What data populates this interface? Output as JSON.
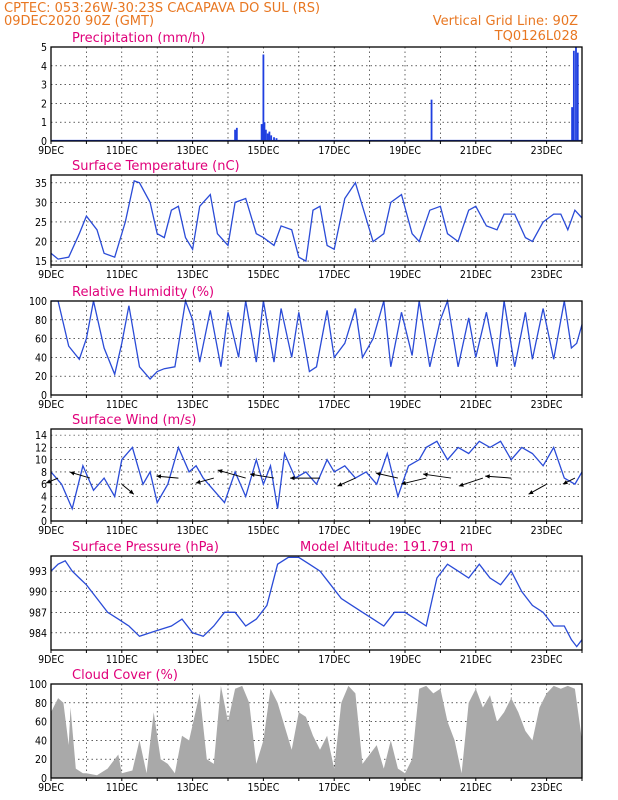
{
  "header": {
    "line1": "CPTEC:   053:26W-30:23S   CACAPAVA DO SUL (RS)",
    "line2": "09DEC2020  90Z (GMT)",
    "grid_note": "Vertical Grid Line: 90Z",
    "code": "TQ0126L028"
  },
  "date_labels": [
    "9DEC",
    "11DEC",
    "13DEC",
    "15DEC",
    "17DEC",
    "19DEC",
    "21DEC",
    "23DEC"
  ],
  "chart_data": [
    {
      "id": "precip",
      "type": "bar",
      "title": "Precipitation  (mm/h)",
      "ylim": [
        0,
        5
      ],
      "yticks": [
        "0",
        "1",
        "2",
        "3",
        "4",
        "5"
      ],
      "xlim": [
        0,
        15
      ],
      "values": [
        [
          5.2,
          0.6
        ],
        [
          5.25,
          0.7
        ],
        [
          5.95,
          0.9
        ],
        [
          6.0,
          4.6
        ],
        [
          6.03,
          1.0
        ],
        [
          6.07,
          0.6
        ],
        [
          6.12,
          0.4
        ],
        [
          6.17,
          0.5
        ],
        [
          6.22,
          0.3
        ],
        [
          6.3,
          0.2
        ],
        [
          6.37,
          0.15
        ],
        [
          10.75,
          2.2
        ],
        [
          14.72,
          1.8
        ],
        [
          14.77,
          4.8
        ],
        [
          14.83,
          5.0
        ],
        [
          14.88,
          4.7
        ]
      ]
    },
    {
      "id": "temp",
      "type": "line",
      "title": "Surface Temperature (nC)",
      "ylim": [
        14,
        37
      ],
      "yticks": [
        "15",
        "20",
        "25",
        "30",
        "35"
      ],
      "xlim": [
        0,
        15
      ],
      "x": [
        0,
        0.2,
        0.5,
        0.8,
        1,
        1.3,
        1.5,
        1.8,
        2.1,
        2.35,
        2.5,
        2.8,
        3.0,
        3.2,
        3.4,
        3.6,
        3.8,
        4.0,
        4.2,
        4.5,
        4.7,
        5.0,
        5.2,
        5.5,
        5.8,
        6.0,
        6.3,
        6.5,
        6.8,
        7.0,
        7.2,
        7.4,
        7.6,
        7.8,
        8.0,
        8.3,
        8.6,
        8.8,
        9.1,
        9.4,
        9.6,
        9.9,
        10.2,
        10.4,
        10.7,
        11.0,
        11.2,
        11.5,
        11.8,
        12.0,
        12.3,
        12.6,
        12.8,
        13.1,
        13.4,
        13.6,
        13.9,
        14.2,
        14.4,
        14.6,
        14.8,
        15
      ],
      "y": [
        17,
        15.5,
        16,
        22,
        26.5,
        23,
        17,
        16,
        25,
        35.5,
        35,
        30,
        22,
        21,
        28,
        29,
        21,
        18,
        29,
        32,
        22,
        19,
        30,
        31,
        22,
        21,
        19,
        24,
        23,
        16,
        15,
        28,
        29,
        19,
        18,
        31,
        35,
        29,
        20,
        22,
        30,
        32,
        22,
        20,
        28,
        29,
        22,
        20,
        28,
        29,
        24,
        23,
        27,
        27,
        21,
        20,
        25,
        27,
        27,
        23,
        28,
        26
      ]
    },
    {
      "id": "rh",
      "type": "line",
      "title": "Relative Humidity (%)",
      "ylim": [
        0,
        100
      ],
      "yticks": [
        "0",
        "20",
        "40",
        "60",
        "80",
        "100"
      ],
      "xlim": [
        0,
        15
      ],
      "x": [
        0,
        0.2,
        0.5,
        0.8,
        1.0,
        1.2,
        1.5,
        1.8,
        2.0,
        2.2,
        2.5,
        2.8,
        3.0,
        3.2,
        3.5,
        3.8,
        4.0,
        4.2,
        4.5,
        4.8,
        5.0,
        5.3,
        5.5,
        5.8,
        6.0,
        6.3,
        6.5,
        6.8,
        7.0,
        7.3,
        7.5,
        7.8,
        8.0,
        8.3,
        8.6,
        8.8,
        9.1,
        9.4,
        9.6,
        9.9,
        10.2,
        10.4,
        10.7,
        11.0,
        11.2,
        11.5,
        11.8,
        12.0,
        12.3,
        12.6,
        12.8,
        13.1,
        13.4,
        13.6,
        13.9,
        14.2,
        14.5,
        14.7,
        14.85,
        15
      ],
      "y": [
        100,
        100,
        52,
        38,
        60,
        100,
        50,
        22,
        55,
        95,
        30,
        17,
        25,
        28,
        30,
        100,
        80,
        35,
        90,
        30,
        88,
        40,
        100,
        35,
        100,
        35,
        92,
        40,
        88,
        25,
        30,
        90,
        40,
        55,
        92,
        40,
        60,
        100,
        30,
        88,
        42,
        100,
        30,
        80,
        100,
        30,
        82,
        40,
        88,
        30,
        100,
        30,
        88,
        38,
        92,
        38,
        100,
        50,
        55,
        75
      ]
    },
    {
      "id": "wind",
      "type": "line",
      "title": "Surface Wind (m/s)",
      "ylim": [
        0,
        15
      ],
      "yticks": [
        "0",
        "2",
        "4",
        "6",
        "8",
        "10",
        "12",
        "14"
      ],
      "xlim": [
        0,
        15
      ],
      "x": [
        0,
        0.3,
        0.6,
        0.9,
        1.2,
        1.5,
        1.8,
        2.0,
        2.3,
        2.6,
        2.8,
        3.0,
        3.3,
        3.6,
        3.9,
        4.1,
        4.3,
        4.6,
        4.9,
        5.2,
        5.5,
        5.8,
        6.0,
        6.2,
        6.4,
        6.6,
        6.9,
        7.2,
        7.5,
        7.8,
        8.0,
        8.3,
        8.6,
        8.9,
        9.2,
        9.5,
        9.8,
        10.1,
        10.4,
        10.6,
        10.9,
        11.2,
        11.5,
        11.8,
        12.1,
        12.4,
        12.7,
        13.0,
        13.3,
        13.6,
        13.9,
        14.2,
        14.5,
        14.8,
        15
      ],
      "y": [
        8,
        6,
        2,
        9,
        5,
        7,
        4,
        10,
        12,
        6,
        8,
        3,
        6,
        12,
        8,
        9,
        7,
        5,
        3,
        8,
        4,
        10,
        6,
        9,
        2,
        11,
        7,
        8,
        6,
        10,
        8,
        9,
        7,
        8,
        6,
        11,
        4,
        9,
        10,
        12,
        13,
        10,
        12,
        11,
        13,
        12,
        13,
        10,
        12,
        11,
        9,
        12,
        7,
        6,
        8
      ]
    },
    {
      "id": "pressure",
      "type": "line",
      "title": "Surface Pressure (hPa)",
      "subtitle": "Model Altitude:  191.791  m",
      "ylim": [
        981.5,
        995.2
      ],
      "yticks": [
        "984",
        "987",
        "990",
        "993"
      ],
      "xlim": [
        0,
        15
      ],
      "x": [
        0,
        0.2,
        0.4,
        0.6,
        0.8,
        1.0,
        1.3,
        1.6,
        1.9,
        2.2,
        2.5,
        2.8,
        3.1,
        3.4,
        3.7,
        4.0,
        4.3,
        4.6,
        4.9,
        5.2,
        5.5,
        5.8,
        6.1,
        6.4,
        6.7,
        7.0,
        7.3,
        7.6,
        7.9,
        8.2,
        8.5,
        8.8,
        9.1,
        9.4,
        9.7,
        10.0,
        10.3,
        10.6,
        10.9,
        11.2,
        11.5,
        11.8,
        12.1,
        12.4,
        12.7,
        13.0,
        13.3,
        13.6,
        13.9,
        14.2,
        14.5,
        14.7,
        14.85,
        15
      ],
      "y": [
        993,
        994,
        994.5,
        993,
        992,
        991,
        989,
        987,
        986,
        985,
        983.5,
        984,
        984.5,
        985,
        986,
        984,
        983.5,
        985,
        987,
        987,
        985,
        986,
        988,
        994,
        995,
        995,
        994,
        993,
        991,
        989,
        988,
        987,
        986,
        985,
        987,
        987,
        986,
        985,
        992,
        994,
        993,
        992,
        994,
        992,
        991,
        993,
        990,
        988,
        987,
        985,
        985,
        983,
        982,
        983
      ]
    },
    {
      "id": "cloud",
      "type": "area",
      "title": "Cloud Cover (%)",
      "ylim": [
        0,
        100
      ],
      "yticks": [
        "0",
        "20",
        "40",
        "60",
        "80",
        "100"
      ],
      "xlim": [
        0,
        15
      ],
      "x": [
        0,
        0.2,
        0.35,
        0.5,
        0.55,
        0.7,
        0.9,
        1.0,
        1.3,
        1.6,
        1.9,
        2.0,
        2.3,
        2.5,
        2.7,
        2.9,
        3.1,
        3.3,
        3.5,
        3.7,
        3.9,
        4.2,
        4.4,
        4.6,
        4.8,
        5.0,
        5.2,
        5.4,
        5.6,
        5.8,
        6.0,
        6.2,
        6.4,
        6.6,
        6.8,
        7.0,
        7.2,
        7.4,
        7.6,
        7.8,
        8.0,
        8.2,
        8.4,
        8.6,
        8.8,
        9.0,
        9.2,
        9.4,
        9.6,
        9.8,
        10.0,
        10.2,
        10.4,
        10.6,
        10.8,
        11.0,
        11.2,
        11.4,
        11.6,
        11.8,
        12.0,
        12.2,
        12.4,
        12.6,
        12.8,
        13.0,
        13.2,
        13.4,
        13.6,
        13.8,
        14.0,
        14.2,
        14.4,
        14.6,
        14.8,
        15
      ],
      "y": [
        70,
        85,
        80,
        35,
        75,
        10,
        5,
        5,
        3,
        10,
        25,
        5,
        8,
        40,
        5,
        70,
        20,
        15,
        5,
        45,
        40,
        90,
        20,
        15,
        98,
        60,
        95,
        98,
        80,
        15,
        40,
        95,
        80,
        55,
        30,
        70,
        65,
        45,
        30,
        45,
        10,
        80,
        98,
        90,
        15,
        25,
        35,
        10,
        40,
        10,
        5,
        20,
        95,
        98,
        90,
        95,
        60,
        40,
        5,
        80,
        95,
        75,
        88,
        60,
        70,
        85,
        70,
        50,
        40,
        75,
        90,
        98,
        95,
        98,
        95,
        40
      ]
    }
  ]
}
